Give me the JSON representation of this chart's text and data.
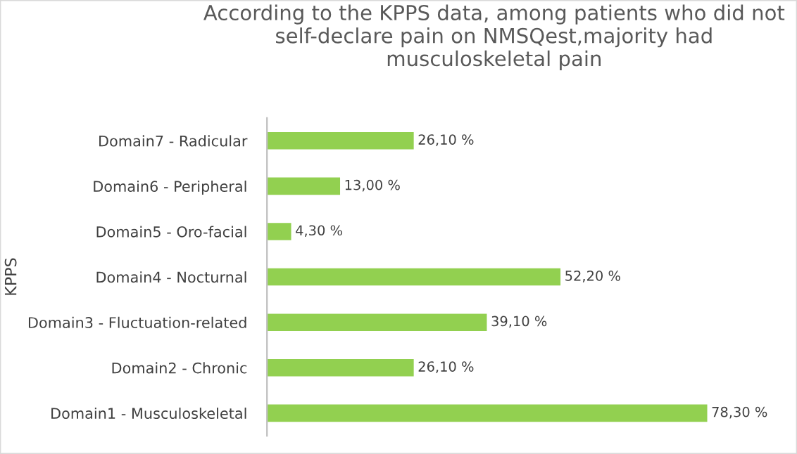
{
  "chart_data": {
    "type": "bar",
    "orientation": "horizontal",
    "title": "According to the KPPS data, among patients who did not self-declare pain on NMSQest,majority had musculoskeletal pain",
    "ylabel": "KPPS",
    "categories": [
      "Domain7 - Radicular",
      "Domain6 - Peripheral",
      "Domain5 - Oro-facial",
      "Domain4 - Nocturnal",
      "Domain3 - Fluctuation-related",
      "Domain2 - Chronic",
      "Domain1 - Musculoskeletal"
    ],
    "values": [
      26.1,
      13.0,
      4.3,
      52.2,
      39.1,
      26.1,
      78.3
    ],
    "value_labels": [
      "26,10 %",
      "13,00 %",
      "4,30 %",
      "52,20 %",
      "39,10 %",
      "26,10 %",
      "78,30 %"
    ],
    "color": "#92d050",
    "grid": false,
    "legend": false
  }
}
